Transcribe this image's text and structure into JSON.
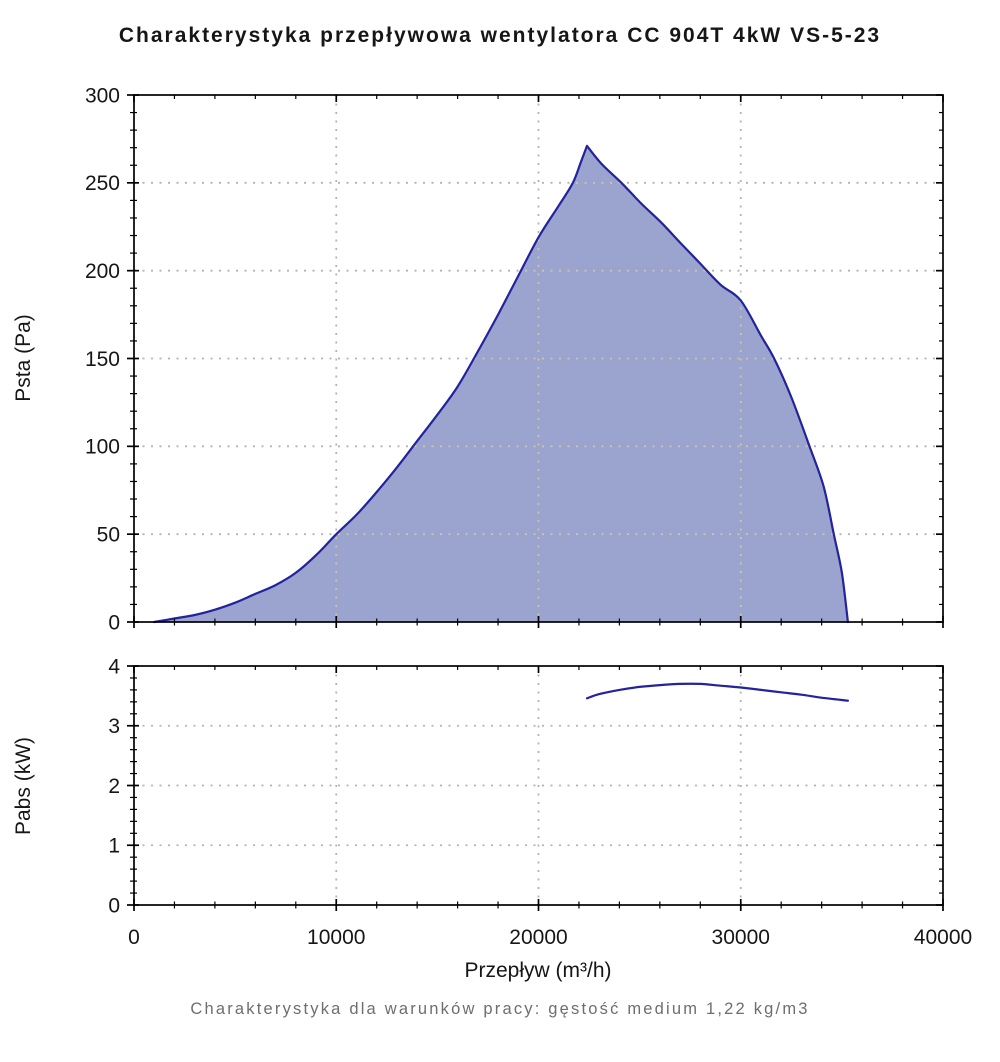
{
  "figure": {
    "title": "Charakterystyka przepływowa wentylatora CC 904T 4kW VS-5-23",
    "footer": "Charakterystyka dla warunków pracy: gęstość medium 1,22 kg/m3"
  },
  "colors": {
    "curve": "#23239b",
    "area_fill": "#9aa4cf",
    "grid": "#b3b3b3",
    "grid_on_fill": "#cdc6a4",
    "axis": "#000000",
    "label_text": "#161616",
    "footer_text": "#6e6e6e"
  },
  "chart_data": [
    {
      "type": "area",
      "name": "fan-pressure-curve",
      "title": "",
      "xlabel": "",
      "ylabel": "Psta (Pa)",
      "xlim": [
        0,
        40000
      ],
      "ylim": [
        0,
        300
      ],
      "x_major_step": 10000,
      "x_minor_step": 2000,
      "y_major_step": 50,
      "y_minor_step": 10,
      "x_tick_labels": [],
      "y_tick_labels": [
        "0",
        "50",
        "100",
        "150",
        "200",
        "250",
        "300"
      ],
      "grid": "dotted",
      "legend": "none",
      "series": [
        {
          "name": "Psta-envelope",
          "fill": true,
          "sharp_peak_x": 22400,
          "x": [
            1000,
            2000,
            3000,
            4000,
            5000,
            6000,
            7000,
            8000,
            9000,
            10000,
            11000,
            12000,
            13000,
            14000,
            15000,
            16000,
            17000,
            18000,
            19000,
            20000,
            21000,
            21700,
            22100,
            22400,
            23100,
            24100,
            25100,
            26100,
            27000,
            28000,
            29000,
            30000,
            31000,
            31650,
            32500,
            33400,
            34100,
            34600,
            35000,
            35300
          ],
          "y": [
            0,
            2,
            4,
            7,
            11,
            16,
            21,
            28,
            38,
            50,
            61,
            74,
            88,
            103,
            118,
            134,
            154,
            175,
            197,
            219,
            237,
            250,
            262,
            271,
            261,
            250,
            238,
            227,
            216,
            204,
            192,
            183,
            163,
            150,
            128,
            100,
            77,
            50,
            28,
            0
          ]
        }
      ]
    },
    {
      "type": "line",
      "name": "fan-power-curve",
      "title": "",
      "xlabel": "Przepływ (m³/h)",
      "ylabel": "Pabs (kW)",
      "xlim": [
        0,
        40000
      ],
      "ylim": [
        0,
        4
      ],
      "x_major_step": 10000,
      "x_minor_step": 2000,
      "y_major_step": 1,
      "y_minor_step": 0.2,
      "x_tick_labels": [
        "0",
        "10000",
        "20000",
        "30000",
        "40000"
      ],
      "y_tick_labels": [
        "0",
        "1",
        "2",
        "3",
        "4"
      ],
      "grid": "dotted",
      "legend": "none",
      "series": [
        {
          "name": "Pabs",
          "fill": false,
          "x": [
            22400,
            23000,
            24000,
            25000,
            26000,
            27000,
            28000,
            29000,
            30000,
            31000,
            32000,
            33000,
            34000,
            35300
          ],
          "y": [
            3.46,
            3.53,
            3.6,
            3.65,
            3.68,
            3.7,
            3.7,
            3.67,
            3.64,
            3.6,
            3.56,
            3.52,
            3.47,
            3.42
          ]
        }
      ]
    }
  ]
}
